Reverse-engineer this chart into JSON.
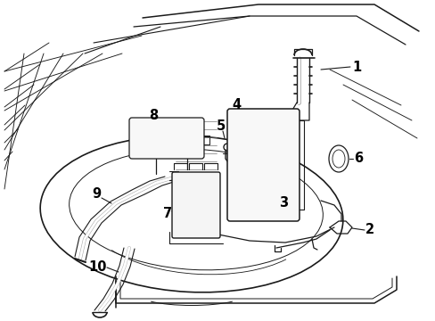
{
  "background_color": "#ffffff",
  "line_color": "#1a1a1a",
  "label_color": "#000000",
  "lw": 1.0,
  "fig_w": 4.89,
  "fig_h": 3.6,
  "dpi": 100
}
